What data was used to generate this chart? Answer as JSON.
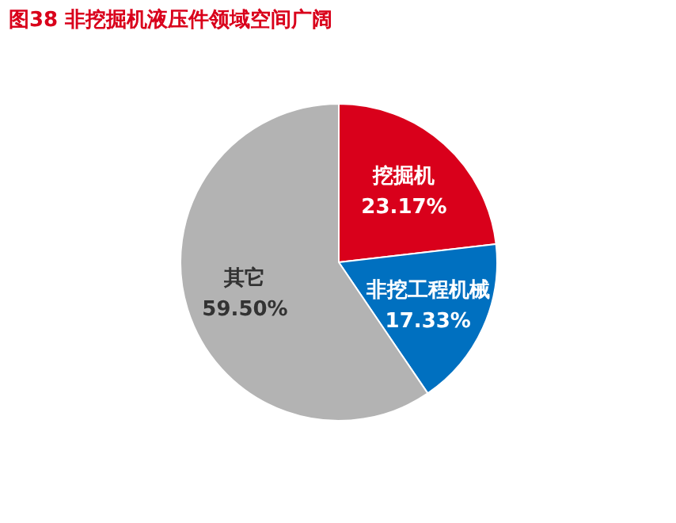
{
  "chart_data": {
    "type": "pie",
    "title": "图38  非挖掘机液压件领域空间广阔",
    "categories": [
      "挖掘机",
      "非挖工程机械",
      "其它"
    ],
    "values": [
      23.17,
      17.33,
      59.5
    ],
    "colors": [
      "#d9001b",
      "#0070c0",
      "#b3b3b3"
    ],
    "value_labels": [
      "23.17%",
      "17.33%",
      "59.50%"
    ]
  }
}
